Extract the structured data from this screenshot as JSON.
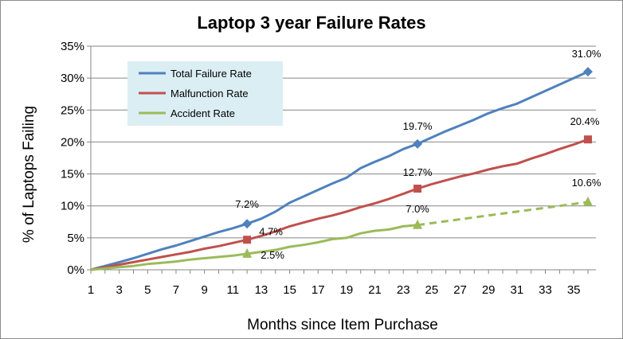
{
  "chart_data": {
    "type": "line",
    "title": "Laptop 3 year Failure Rates",
    "xlabel": "Months since Item Purchase",
    "ylabel": "% of Laptops Failing",
    "xlim": [
      1,
      36
    ],
    "ylim": [
      0,
      35
    ],
    "x_ticks": [
      "1",
      "3",
      "5",
      "7",
      "9",
      "11",
      "13",
      "15",
      "17",
      "19",
      "21",
      "23",
      "25",
      "27",
      "29",
      "31",
      "33",
      "35"
    ],
    "y_ticks": [
      "0%",
      "5%",
      "10%",
      "15%",
      "20%",
      "25%",
      "30%",
      "35%"
    ],
    "legend": {
      "placement": "top-left",
      "background": "#dbeef4"
    },
    "series": [
      {
        "name": "Total Failure Rate",
        "color": "#4f81bd",
        "marker": "diamond",
        "points": [
          [
            1,
            0
          ],
          [
            2,
            0.6
          ],
          [
            3,
            1.2
          ],
          [
            4,
            1.8
          ],
          [
            5,
            2.5
          ],
          [
            6,
            3.2
          ],
          [
            7,
            3.8
          ],
          [
            8,
            4.5
          ],
          [
            9,
            5.2
          ],
          [
            10,
            5.9
          ],
          [
            11,
            6.5
          ],
          [
            12,
            7.2
          ],
          [
            13,
            8.0
          ],
          [
            14,
            9.1
          ],
          [
            15,
            10.5
          ],
          [
            16,
            11.5
          ],
          [
            17,
            12.5
          ],
          [
            18,
            13.5
          ],
          [
            19,
            14.4
          ],
          [
            20,
            15.9
          ],
          [
            21,
            16.9
          ],
          [
            22,
            17.8
          ],
          [
            23,
            18.9
          ],
          [
            24,
            19.7
          ],
          [
            25,
            20.7
          ],
          [
            26,
            21.7
          ],
          [
            27,
            22.6
          ],
          [
            28,
            23.5
          ],
          [
            29,
            24.5
          ],
          [
            30,
            25.3
          ],
          [
            31,
            26.0
          ],
          [
            32,
            27.0
          ],
          [
            33,
            28.0
          ],
          [
            34,
            29.0
          ],
          [
            35,
            30.0
          ],
          [
            36,
            31.0
          ]
        ],
        "solid_until": 36,
        "labels": [
          {
            "x": 12,
            "y": 7.2,
            "text": "7.2%"
          },
          {
            "x": 24,
            "y": 19.7,
            "text": "19.7%"
          },
          {
            "x": 36,
            "y": 31.0,
            "text": "31.0%"
          }
        ]
      },
      {
        "name": "Malfunction Rate",
        "color": "#c0504d",
        "marker": "square",
        "points": [
          [
            1,
            0
          ],
          [
            2,
            0.4
          ],
          [
            3,
            0.8
          ],
          [
            4,
            1.2
          ],
          [
            5,
            1.6
          ],
          [
            6,
            2.0
          ],
          [
            7,
            2.4
          ],
          [
            8,
            2.8
          ],
          [
            9,
            3.3
          ],
          [
            10,
            3.7
          ],
          [
            11,
            4.2
          ],
          [
            12,
            4.7
          ],
          [
            13,
            5.3
          ],
          [
            14,
            6.0
          ],
          [
            15,
            6.8
          ],
          [
            16,
            7.4
          ],
          [
            17,
            8.0
          ],
          [
            18,
            8.5
          ],
          [
            19,
            9.1
          ],
          [
            20,
            9.8
          ],
          [
            21,
            10.4
          ],
          [
            22,
            11.1
          ],
          [
            23,
            11.9
          ],
          [
            24,
            12.7
          ],
          [
            25,
            13.4
          ],
          [
            26,
            14.0
          ],
          [
            27,
            14.6
          ],
          [
            28,
            15.1
          ],
          [
            29,
            15.7
          ],
          [
            30,
            16.2
          ],
          [
            31,
            16.6
          ],
          [
            32,
            17.4
          ],
          [
            33,
            18.1
          ],
          [
            34,
            18.9
          ],
          [
            35,
            19.6
          ],
          [
            36,
            20.4
          ]
        ],
        "solid_until": 36,
        "labels": [
          {
            "x": 12,
            "y": 4.7,
            "text": "4.7%"
          },
          {
            "x": 24,
            "y": 12.7,
            "text": "12.7%"
          },
          {
            "x": 36,
            "y": 20.4,
            "text": "20.4%"
          }
        ]
      },
      {
        "name": "Accident Rate",
        "color": "#9bbb59",
        "marker": "triangle",
        "points": [
          [
            1,
            0
          ],
          [
            2,
            0.2
          ],
          [
            3,
            0.4
          ],
          [
            4,
            0.6
          ],
          [
            5,
            0.9
          ],
          [
            6,
            1.1
          ],
          [
            7,
            1.3
          ],
          [
            8,
            1.6
          ],
          [
            9,
            1.8
          ],
          [
            10,
            2.0
          ],
          [
            11,
            2.2
          ],
          [
            12,
            2.5
          ],
          [
            13,
            2.8
          ],
          [
            14,
            3.1
          ],
          [
            15,
            3.6
          ],
          [
            16,
            3.9
          ],
          [
            17,
            4.3
          ],
          [
            18,
            4.8
          ],
          [
            19,
            5.0
          ],
          [
            20,
            5.7
          ],
          [
            21,
            6.1
          ],
          [
            22,
            6.3
          ],
          [
            23,
            6.8
          ],
          [
            24,
            7.0
          ],
          [
            36,
            10.6
          ]
        ],
        "solid_until": 24,
        "labels": [
          {
            "x": 12,
            "y": 2.5,
            "text": "2.5%"
          },
          {
            "x": 24,
            "y": 7.0,
            "text": "7.0%"
          },
          {
            "x": 36,
            "y": 10.6,
            "text": "10.6%"
          }
        ]
      }
    ]
  }
}
